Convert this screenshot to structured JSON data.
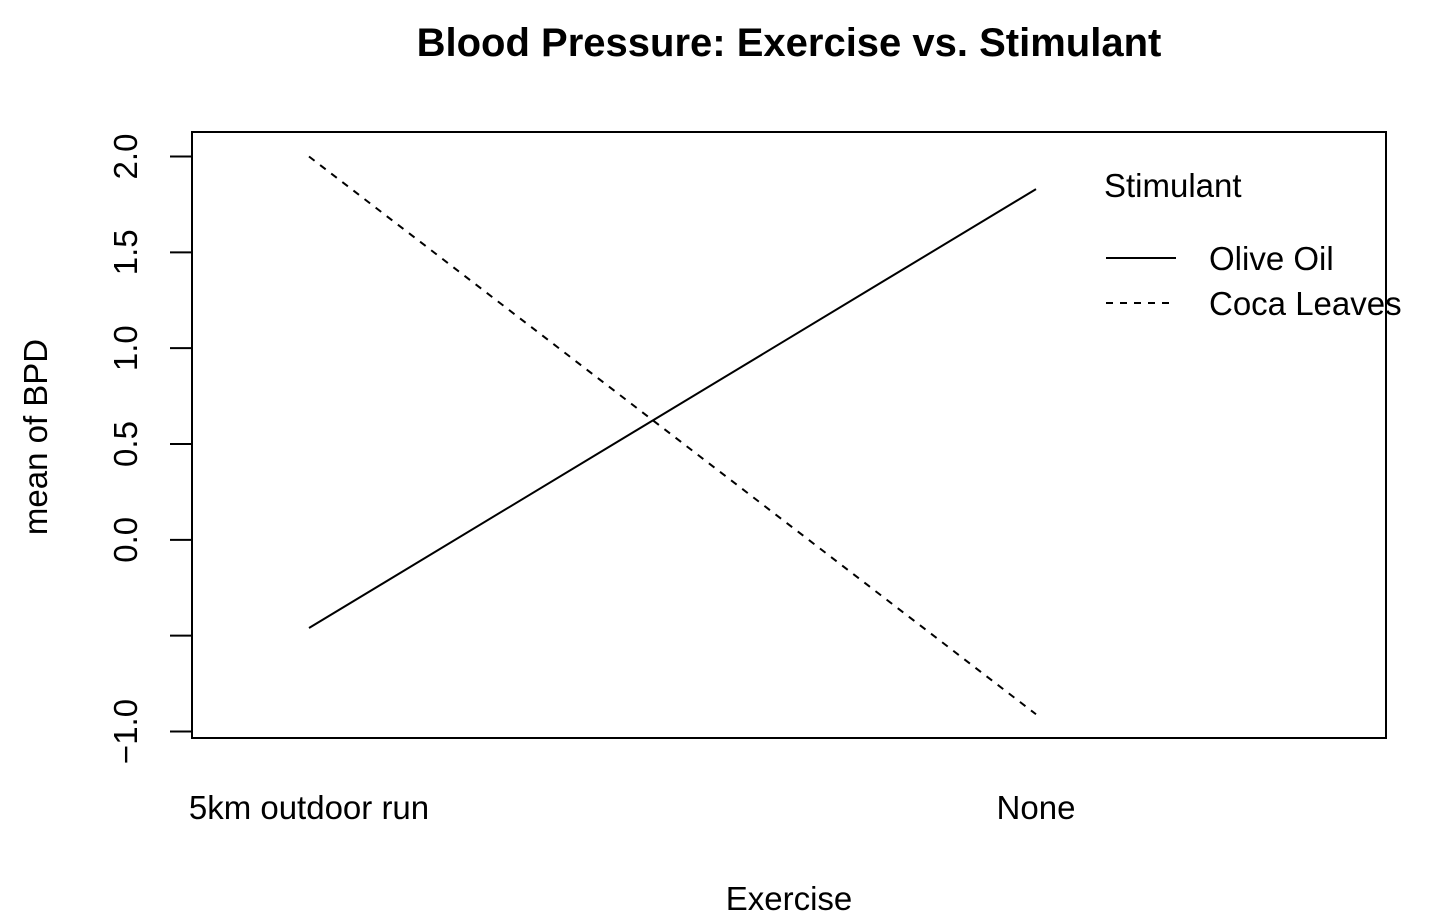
{
  "chart_data": {
    "type": "line",
    "title": "Blood Pressure: Exercise vs. Stimulant",
    "xlabel": "Exercise",
    "ylabel": "mean of  BPD",
    "categories": [
      "5km outdoor run",
      "None"
    ],
    "y_ticks": [
      -1.0,
      -0.5,
      0.0,
      0.5,
      1.0,
      1.5,
      2.0
    ],
    "y_tick_labels": [
      "−1.0",
      "",
      "0.0",
      "0.5",
      "1.0",
      "1.5",
      "2.0"
    ],
    "ylim": [
      -1.03,
      2.13
    ],
    "grid": false,
    "legend": {
      "title": "Stimulant",
      "position": "top-right"
    },
    "series": [
      {
        "name": "Olive Oil",
        "values": [
          -0.46,
          1.83
        ],
        "line_style": "solid",
        "color": "#000000"
      },
      {
        "name": "Coca Leaves",
        "values": [
          2.0,
          -0.91
        ],
        "line_style": "dashed",
        "color": "#000000"
      }
    ]
  }
}
